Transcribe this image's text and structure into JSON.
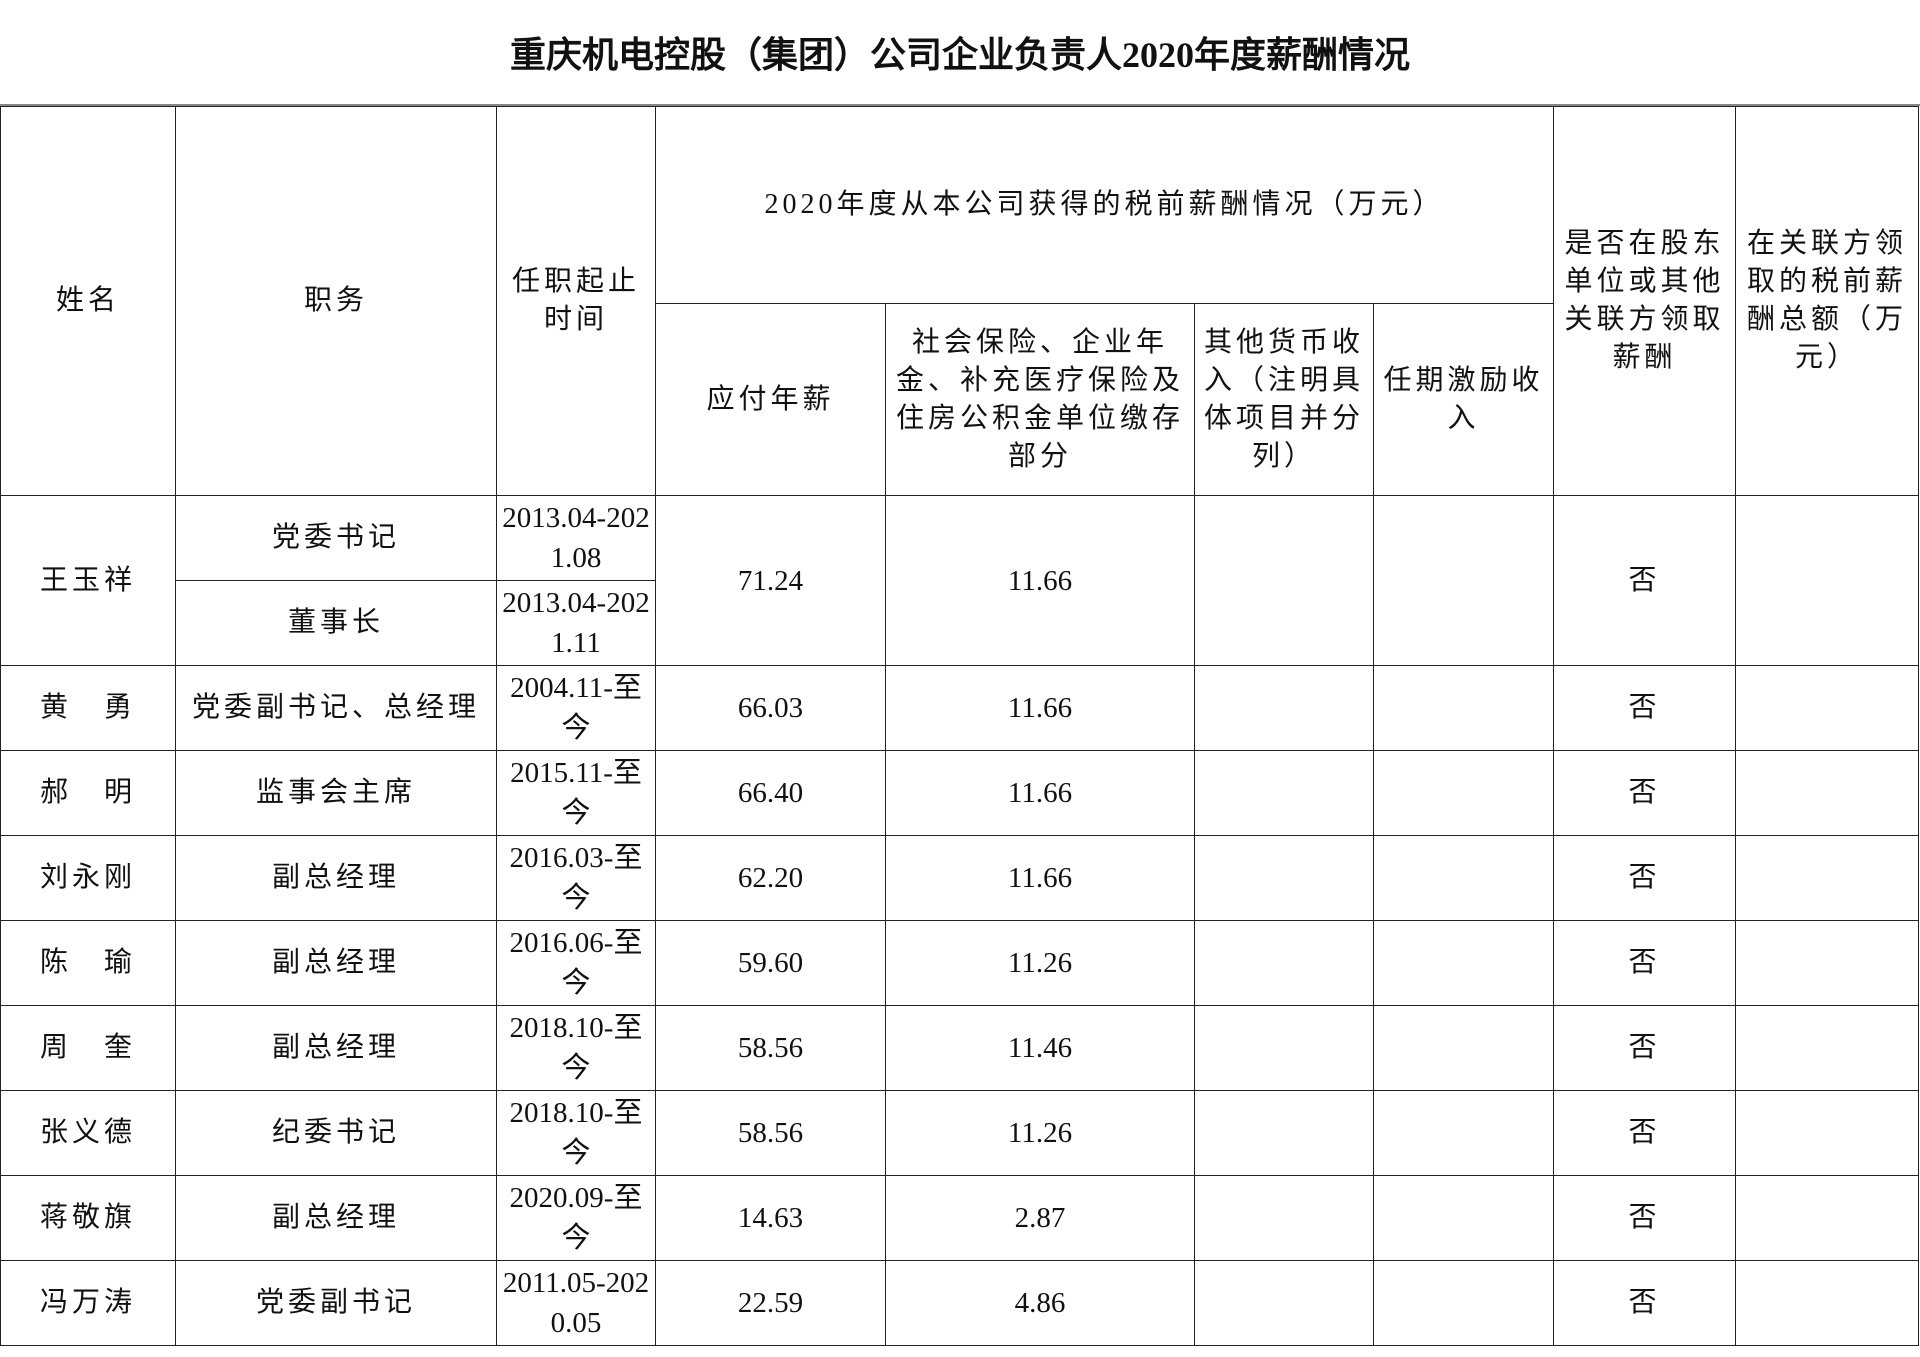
{
  "title": "重庆机电控股（集团）公司企业负责人2020年度薪酬情况",
  "headers": {
    "name": "姓名",
    "position": "职务",
    "term": "任职起止时间",
    "group": "2020年度从本公司获得的税前薪酬情况（万元）",
    "salary": "应付年薪",
    "insurance": "社会保险、企业年金、补充医疗保险及住房公积金单位缴存部分",
    "other_income": "其他货币收入（注明具体项目并分列）",
    "incentive": "任期激励收入",
    "related_paid": "是否在股东单位或其他关联方领取薪酬",
    "related_amount": "在关联方领取的税前薪酬总额（万元）"
  },
  "rows": [
    {
      "name": "王玉祥",
      "positions": [
        {
          "title": "党委书记",
          "term": "2013.04-2021.08"
        },
        {
          "title": "董事长",
          "term": "2013.04-2021.11"
        }
      ],
      "salary": "71.24",
      "insurance": "11.66",
      "other_income": "",
      "incentive": "",
      "related_paid": "否",
      "related_amount": ""
    },
    {
      "name": "黄　勇",
      "positions": [
        {
          "title": "党委副书记、总经理",
          "term": "2004.11-至今"
        }
      ],
      "salary": "66.03",
      "insurance": "11.66",
      "other_income": "",
      "incentive": "",
      "related_paid": "否",
      "related_amount": ""
    },
    {
      "name": "郝　明",
      "positions": [
        {
          "title": "监事会主席",
          "term": "2015.11-至今"
        }
      ],
      "salary": "66.40",
      "insurance": "11.66",
      "other_income": "",
      "incentive": "",
      "related_paid": "否",
      "related_amount": ""
    },
    {
      "name": "刘永刚",
      "positions": [
        {
          "title": "副总经理",
          "term": "2016.03-至今"
        }
      ],
      "salary": "62.20",
      "insurance": "11.66",
      "other_income": "",
      "incentive": "",
      "related_paid": "否",
      "related_amount": ""
    },
    {
      "name": "陈　瑜",
      "positions": [
        {
          "title": "副总经理",
          "term": "2016.06-至今"
        }
      ],
      "salary": "59.60",
      "insurance": "11.26",
      "other_income": "",
      "incentive": "",
      "related_paid": "否",
      "related_amount": ""
    },
    {
      "name": "周　奎",
      "positions": [
        {
          "title": "副总经理",
          "term": "2018.10-至今"
        }
      ],
      "salary": "58.56",
      "insurance": "11.46",
      "other_income": "",
      "incentive": "",
      "related_paid": "否",
      "related_amount": ""
    },
    {
      "name": "张义德",
      "positions": [
        {
          "title": "纪委书记",
          "term": "2018.10-至今"
        }
      ],
      "salary": "58.56",
      "insurance": "11.26",
      "other_income": "",
      "incentive": "",
      "related_paid": "否",
      "related_amount": ""
    },
    {
      "name": "蒋敬旗",
      "positions": [
        {
          "title": "副总经理",
          "term": "2020.09-至今"
        }
      ],
      "salary": "14.63",
      "insurance": "2.87",
      "other_income": "",
      "incentive": "",
      "related_paid": "否",
      "related_amount": ""
    },
    {
      "name": "冯万涛",
      "positions": [
        {
          "title": "党委副书记",
          "term": "2011.05-2020.05"
        }
      ],
      "salary": "22.59",
      "insurance": "4.86",
      "other_income": "",
      "incentive": "",
      "related_paid": "否",
      "related_amount": ""
    }
  ]
}
